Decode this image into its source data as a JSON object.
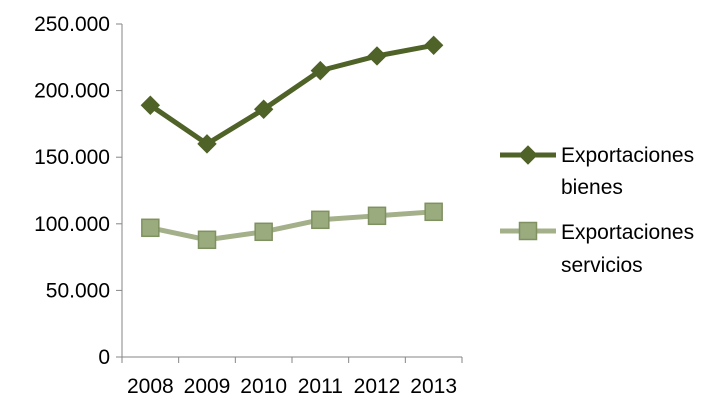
{
  "chart_data": {
    "type": "line",
    "title": "",
    "xlabel": "",
    "ylabel": "",
    "categories": [
      "2008",
      "2009",
      "2010",
      "2011",
      "2012",
      "2013"
    ],
    "ylim": [
      0,
      250000
    ],
    "yticks": [
      0,
      50000,
      100000,
      150000,
      200000,
      250000
    ],
    "ytick_labels": [
      "0",
      "50.000",
      "100.000",
      "150.000",
      "200.000",
      "250.000"
    ],
    "grid": false,
    "legend_position": "right",
    "series": [
      {
        "name": "Exportaciones bienes",
        "name_lines": [
          "Exportaciones",
          "bienes"
        ],
        "values": [
          189000,
          160000,
          186000,
          215000,
          226000,
          234000
        ],
        "color": "#4f6228",
        "marker": "diamond"
      },
      {
        "name": "Exportaciones servicios",
        "name_lines": [
          "Exportaciones",
          "servicios"
        ],
        "values": [
          97000,
          88000,
          94000,
          103000,
          106000,
          109000
        ],
        "color": "#a3b08a",
        "marker_fill": "#9aab7d",
        "marker_stroke": "#7f9161",
        "marker": "square"
      }
    ]
  }
}
